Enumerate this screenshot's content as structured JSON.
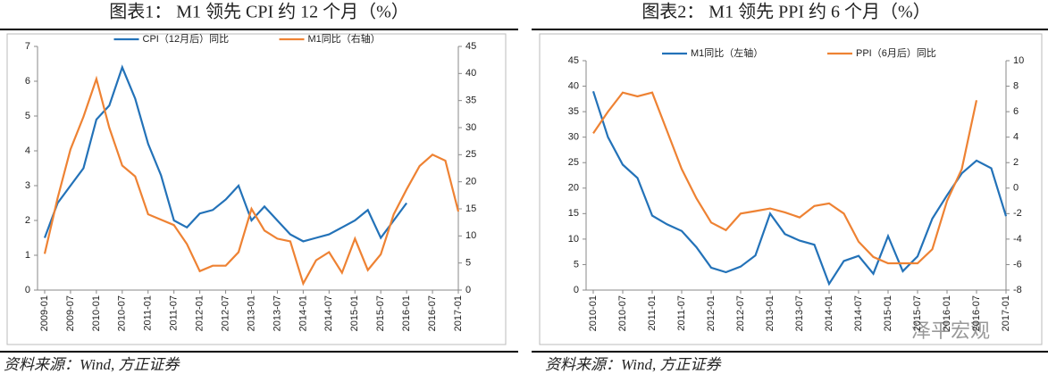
{
  "chart_data": [
    {
      "type": "line",
      "title": "图表1： M1 领先 CPI 约 12 个月（%）",
      "source": "资料来源：Wind, 方正证券",
      "categories": [
        "2009-01",
        null,
        "2009-07",
        null,
        "2010-01",
        null,
        "2010-07",
        null,
        "2011-01",
        null,
        "2011-07",
        null,
        "2012-01",
        null,
        "2012-07",
        null,
        "2013-01",
        null,
        "2013-07",
        null,
        "2014-01",
        null,
        "2014-07",
        null,
        "2015-01",
        null,
        "2015-07",
        null,
        "2016-01",
        null,
        "2016-07",
        null,
        "2017-01"
      ],
      "ylim": [
        0,
        7
      ],
      "yticks": [
        0,
        1,
        2,
        3,
        4,
        5,
        6,
        7
      ],
      "y2lim": [
        0,
        45
      ],
      "y2ticks": [
        0,
        5,
        10,
        15,
        20,
        25,
        30,
        35,
        40,
        45
      ],
      "legend": "top",
      "series": [
        {
          "name": "CPI（12月后）同比",
          "color": "#2372b8",
          "values": [
            1.5,
            2.5,
            3.0,
            3.5,
            4.9,
            5.3,
            6.4,
            5.5,
            4.2,
            3.3,
            2.0,
            1.8,
            2.2,
            2.3,
            2.6,
            3.0,
            2.0,
            2.4,
            2.0,
            1.6,
            1.4,
            1.5,
            1.6,
            1.8,
            2.0,
            2.3,
            1.5,
            2.0,
            2.5,
            null,
            null,
            null,
            null
          ]
        },
        {
          "name": "M1同比（右轴）",
          "color": "#ee8233",
          "axis": "y2",
          "values": [
            6.7,
            17,
            26,
            32,
            39,
            30,
            23,
            21,
            14,
            13,
            12,
            8.5,
            3.5,
            4.5,
            4.5,
            7,
            15,
            11,
            9.5,
            9,
            1.2,
            5.5,
            7,
            3.2,
            9.5,
            3.7,
            6.6,
            14,
            18.6,
            22.9,
            25,
            23.9,
            14.5
          ]
        }
      ]
    },
    {
      "type": "line",
      "title": "图表2： M1 领先 PPI 约 6 个月（%）",
      "source": "资料来源：Wind, 方正证券",
      "watermark": "泽平宏观",
      "categories": [
        "2010-01",
        null,
        "2010-07",
        null,
        "2011-01",
        null,
        "2011-07",
        null,
        "2012-01",
        null,
        "2012-07",
        null,
        "2013-01",
        null,
        "2013-07",
        null,
        "2014-01",
        null,
        "2014-07",
        null,
        "2015-01",
        null,
        "2015-07",
        null,
        "2016-01",
        null,
        "2016-07",
        null,
        "2017-01"
      ],
      "ylim": [
        0,
        45
      ],
      "yticks": [
        0,
        5,
        10,
        15,
        20,
        25,
        30,
        35,
        40,
        45
      ],
      "y2lim": [
        -8,
        10
      ],
      "y2ticks": [
        -8,
        -6,
        -4,
        -2,
        0,
        2,
        4,
        6,
        8,
        10
      ],
      "legend": "top",
      "series": [
        {
          "name": "M1同比（左轴）",
          "color": "#2372b8",
          "values": [
            39,
            30,
            24.6,
            22,
            14.6,
            12.9,
            11.6,
            8.4,
            4.4,
            3.5,
            4.6,
            6.8,
            15,
            11,
            9.7,
            8.9,
            1.2,
            5.7,
            6.7,
            3.2,
            10.6,
            3.7,
            6.6,
            14,
            18.6,
            22.9,
            25.4,
            23.9,
            14.5
          ]
        },
        {
          "name": "PPI（6月后）同比",
          "color": "#ee8233",
          "axis": "y2",
          "values": [
            4.3,
            6,
            7.5,
            7.2,
            7.5,
            4.5,
            1.5,
            -0.8,
            -2.7,
            -3.3,
            -2,
            -1.8,
            -1.6,
            -1.9,
            -2.3,
            -1.4,
            -1.2,
            -2,
            -4.2,
            -5.4,
            -5.9,
            -5.9,
            -5.9,
            -4.8,
            -1,
            1.5,
            6.9,
            null,
            null
          ]
        }
      ]
    }
  ]
}
